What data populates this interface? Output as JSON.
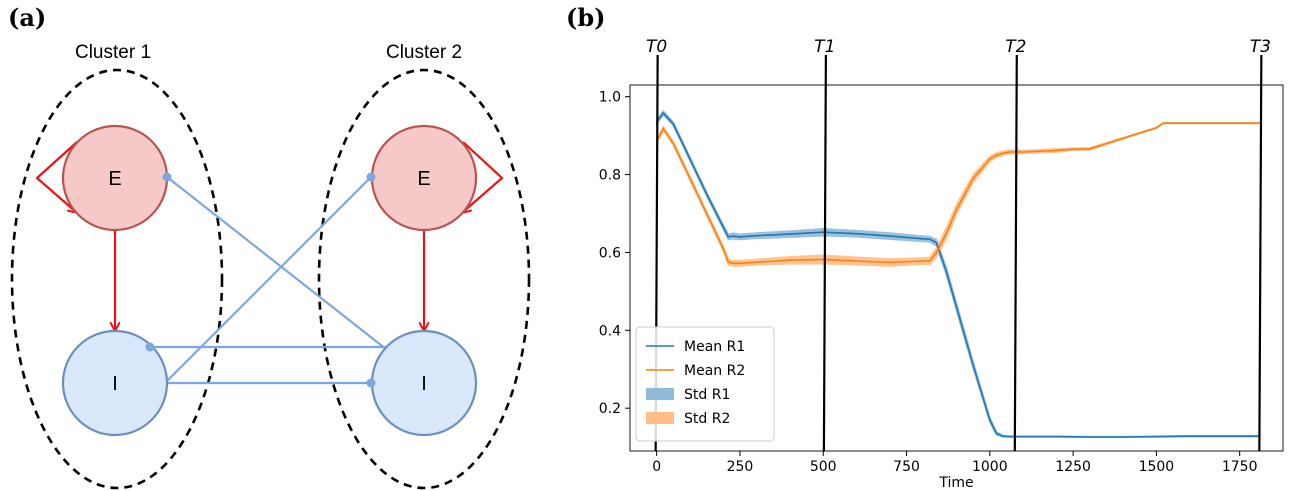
{
  "panel_a": {
    "label": "(a)",
    "clusters": [
      {
        "title": "Cluster 1",
        "excitatory_label": "E",
        "inhibitory_label": "I"
      },
      {
        "title": "Cluster 2",
        "excitatory_label": "E",
        "inhibitory_label": "I"
      }
    ],
    "colors": {
      "excitatory_fill": "#f5c9c7",
      "excitatory_stroke": "#b85450",
      "inhibitory_fill": "#dae8fc",
      "inhibitory_stroke": "#6c8ebf",
      "excitatory_edge": "#ee1111",
      "inhibitory_edge": "#7ea6e0"
    }
  },
  "panel_b": {
    "label": "(b)",
    "chart_data": {
      "type": "line",
      "xlabel": "Time",
      "ylabel": "",
      "xlim": [
        -80,
        1880
      ],
      "ylim": [
        0.09,
        1.03
      ],
      "xticks": [
        0,
        250,
        500,
        750,
        1000,
        1250,
        1500,
        1750
      ],
      "yticks": [
        0.2,
        0.4,
        0.6,
        0.8,
        1.0
      ],
      "ytick_labels": [
        "0.2",
        "0.4",
        "0.6",
        "0.8",
        "1.0"
      ],
      "grid": false,
      "legend_position": "lower-left",
      "time_markers": [
        {
          "label": "T0",
          "x": 0
        },
        {
          "label": "T1",
          "x": 505
        },
        {
          "label": "T2",
          "x": 1078
        },
        {
          "label": "T3",
          "x": 1812
        }
      ],
      "series": [
        {
          "name": "Mean R1",
          "color": "#1f77b4",
          "std_name": "Std R1",
          "std_color": "#8fbbda",
          "x": [
            0,
            20,
            50,
            100,
            150,
            200,
            215,
            230,
            250,
            300,
            400,
            500,
            600,
            700,
            800,
            820,
            840,
            870,
            900,
            950,
            1000,
            1020,
            1040,
            1060,
            1100,
            1200,
            1300,
            1400,
            1500,
            1600,
            1700,
            1812
          ],
          "values": [
            0.935,
            0.958,
            0.93,
            0.84,
            0.75,
            0.665,
            0.64,
            0.642,
            0.64,
            0.643,
            0.647,
            0.652,
            0.648,
            0.642,
            0.635,
            0.634,
            0.625,
            0.55,
            0.46,
            0.31,
            0.17,
            0.135,
            0.128,
            0.127,
            0.127,
            0.127,
            0.126,
            0.126,
            0.127,
            0.128,
            0.128,
            0.128
          ],
          "std": [
            0.005,
            0.005,
            0.005,
            0.005,
            0.005,
            0.006,
            0.007,
            0.007,
            0.007,
            0.007,
            0.008,
            0.009,
            0.008,
            0.008,
            0.007,
            0.007,
            0.008,
            0.01,
            0.01,
            0.009,
            0.006,
            0.004,
            0.002,
            0.001,
            0.001,
            0.001,
            0.001,
            0.001,
            0.001,
            0.001,
            0.001,
            0.001
          ]
        },
        {
          "name": "Mean R2",
          "color": "#ff7f0e",
          "std_name": "Std R2",
          "std_color": "#ffbe86",
          "x": [
            0,
            20,
            50,
            100,
            150,
            200,
            215,
            230,
            250,
            300,
            400,
            500,
            600,
            700,
            800,
            820,
            840,
            870,
            900,
            950,
            1000,
            1020,
            1040,
            1060,
            1100,
            1200,
            1250,
            1300,
            1400,
            1500,
            1520,
            1600,
            1700,
            1812
          ],
          "values": [
            0.885,
            0.918,
            0.88,
            0.79,
            0.7,
            0.61,
            0.575,
            0.572,
            0.572,
            0.575,
            0.58,
            0.582,
            0.578,
            0.574,
            0.578,
            0.578,
            0.6,
            0.65,
            0.71,
            0.79,
            0.84,
            0.85,
            0.855,
            0.858,
            0.858,
            0.862,
            0.865,
            0.866,
            0.893,
            0.92,
            0.932,
            0.932,
            0.932,
            0.932
          ],
          "std": [
            0.005,
            0.005,
            0.005,
            0.005,
            0.005,
            0.006,
            0.007,
            0.007,
            0.007,
            0.007,
            0.009,
            0.011,
            0.01,
            0.009,
            0.008,
            0.009,
            0.012,
            0.014,
            0.013,
            0.01,
            0.007,
            0.006,
            0.005,
            0.005,
            0.004,
            0.004,
            0.003,
            0.003,
            0.002,
            0.001,
            0.001,
            0.001,
            0.001,
            0.001
          ]
        }
      ]
    }
  }
}
